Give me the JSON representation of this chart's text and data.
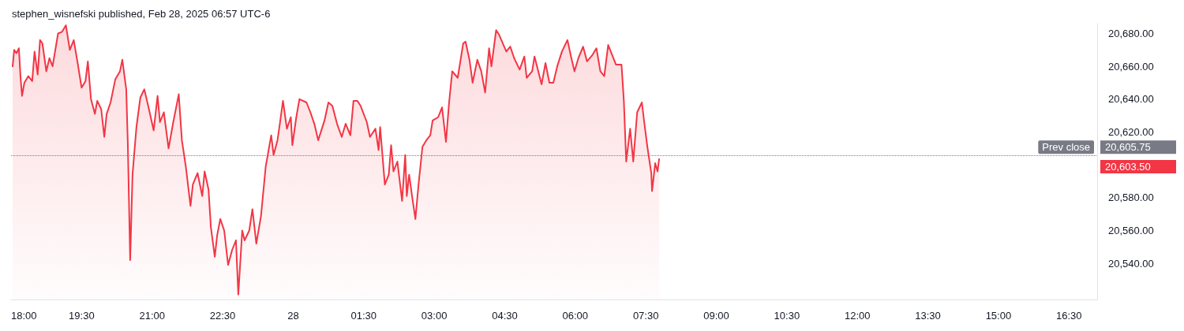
{
  "chart_data": {
    "type": "area",
    "title": "stephen_wisnefski published, Feb 28, 2025 06:57 UTC-6",
    "x": [
      "2025-02-27T18:02",
      "2025-02-27T18:04",
      "2025-02-27T18:07",
      "2025-02-27T18:10",
      "2025-02-27T18:12",
      "2025-02-27T18:14",
      "2025-02-27T18:17",
      "2025-02-27T18:22",
      "2025-02-27T18:27",
      "2025-02-27T18:30",
      "2025-02-27T18:34",
      "2025-02-27T18:37",
      "2025-02-27T18:40",
      "2025-02-27T18:45",
      "2025-02-27T18:49",
      "2025-02-27T18:53",
      "2025-02-27T19:00",
      "2025-02-27T19:05",
      "2025-02-27T19:10",
      "2025-02-27T19:15",
      "2025-02-27T19:20",
      "2025-02-27T19:25",
      "2025-02-27T19:30",
      "2025-02-27T19:35",
      "2025-02-27T19:38",
      "2025-02-27T19:42",
      "2025-02-27T19:47",
      "2025-02-27T19:50",
      "2025-02-27T19:55",
      "2025-02-27T19:59",
      "2025-02-27T20:02",
      "2025-02-27T20:07",
      "2025-02-27T20:13",
      "2025-02-27T20:19",
      "2025-02-27T20:22",
      "2025-02-27T20:27",
      "2025-02-27T20:29",
      "2025-02-27T20:32",
      "2025-02-27T20:35",
      "2025-02-27T20:40",
      "2025-02-27T20:45",
      "2025-02-27T20:50",
      "2025-02-27T20:55",
      "2025-02-27T21:02",
      "2025-02-27T21:07",
      "2025-02-27T21:10",
      "2025-02-27T21:15",
      "2025-02-27T21:21",
      "2025-02-27T21:27",
      "2025-02-27T21:34",
      "2025-02-27T21:38",
      "2025-02-27T21:43",
      "2025-02-27T21:49",
      "2025-02-27T21:52",
      "2025-02-27T21:58",
      "2025-02-27T22:04",
      "2025-02-27T22:07",
      "2025-02-27T22:12",
      "2025-02-27T22:15",
      "2025-02-27T22:20",
      "2025-02-27T22:23",
      "2025-02-27T22:27",
      "2025-02-27T22:32",
      "2025-02-27T22:37",
      "2025-02-27T22:42",
      "2025-02-27T22:47",
      "2025-02-27T22:50",
      "2025-02-27T22:55",
      "2025-02-27T22:58",
      "2025-02-27T23:04",
      "2025-02-27T23:08",
      "2025-02-27T23:13",
      "2025-02-27T23:19",
      "2025-02-27T23:25",
      "2025-02-27T23:32",
      "2025-02-27T23:35",
      "2025-02-27T23:40",
      "2025-02-27T23:43",
      "2025-02-27T23:47",
      "2025-02-27T23:52",
      "2025-02-27T23:57",
      "2025-02-27T23:59",
      "2025-02-28T00:04",
      "2025-02-28T00:08",
      "2025-02-28T00:17",
      "2025-02-28T00:22",
      "2025-02-28T00:27",
      "2025-02-28T00:32",
      "2025-02-28T00:40",
      "2025-02-28T00:45",
      "2025-02-28T00:50",
      "2025-02-28T00:56",
      "2025-02-28T01:02",
      "2025-02-28T01:07",
      "2025-02-28T01:13",
      "2025-02-28T01:17",
      "2025-02-28T01:22",
      "2025-02-28T01:26",
      "2025-02-28T01:34",
      "2025-02-28T01:38",
      "2025-02-28T01:45",
      "2025-02-28T01:49",
      "2025-02-28T01:51",
      "2025-02-28T01:57",
      "2025-02-28T02:02",
      "2025-02-28T02:05",
      "2025-02-28T02:08",
      "2025-02-28T02:13",
      "2025-02-28T02:19",
      "2025-02-28T02:23",
      "2025-02-28T02:25",
      "2025-02-28T02:28",
      "2025-02-28T02:32",
      "2025-02-28T02:36",
      "2025-02-28T02:40",
      "2025-02-28T02:45",
      "2025-02-28T02:50",
      "2025-02-28T02:55",
      "2025-02-28T02:58",
      "2025-02-28T03:05",
      "2025-02-28T03:10",
      "2025-02-28T03:15",
      "2025-02-28T03:19",
      "2025-02-28T03:23",
      "2025-02-28T03:30",
      "2025-02-28T03:37",
      "2025-02-28T03:40",
      "2025-02-28T03:45",
      "2025-02-28T03:49",
      "2025-02-28T03:55",
      "2025-02-28T04:00",
      "2025-02-28T04:05",
      "2025-02-28T04:10",
      "2025-02-28T04:13",
      "2025-02-28T04:19",
      "2025-02-28T04:23",
      "2025-02-28T04:32",
      "2025-02-28T04:37",
      "2025-02-28T04:42",
      "2025-02-28T04:49",
      "2025-02-28T04:55",
      "2025-02-28T04:58",
      "2025-02-28T05:05",
      "2025-02-28T05:08",
      "2025-02-28T05:17",
      "2025-02-28T05:22",
      "2025-02-28T05:27",
      "2025-02-28T05:32",
      "2025-02-28T05:37",
      "2025-02-28T05:43",
      "2025-02-28T05:50",
      "2025-02-28T05:55",
      "2025-02-28T05:59",
      "2025-02-28T06:04",
      "2025-02-28T06:10",
      "2025-02-28T06:15",
      "2025-02-28T06:22",
      "2025-02-28T06:27",
      "2025-02-28T06:32",
      "2025-02-28T06:37",
      "2025-02-28T06:42",
      "2025-02-28T06:47",
      "2025-02-28T06:52",
      "2025-02-28T06:59",
      "2025-02-28T07:02",
      "2025-02-28T07:05",
      "2025-02-28T07:10",
      "2025-02-28T07:14",
      "2025-02-28T07:19",
      "2025-02-28T07:25",
      "2025-02-28T07:28",
      "2025-02-28T07:32",
      "2025-02-28T07:37",
      "2025-02-28T07:38",
      "2025-02-28T07:42",
      "2025-02-28T07:45",
      "2025-02-28T07:47"
    ],
    "series": [
      {
        "color": "#f23645",
        "values": [
          20660,
          20670,
          20668,
          20671,
          20654,
          20642,
          20650,
          20654,
          20651,
          20669,
          20655,
          20676,
          20674,
          20657,
          20665,
          20660,
          20680,
          20681,
          20685,
          20670,
          20676,
          20662,
          20647,
          20651,
          20663,
          20640,
          20631,
          20639,
          20634,
          20617,
          20631,
          20638,
          20652,
          20657,
          20664,
          20646,
          20613,
          20542,
          20594,
          20623,
          20641,
          20646,
          20636,
          20621,
          20642,
          20626,
          20632,
          20610,
          20626,
          20643,
          20615,
          20599,
          20575,
          20588,
          20595,
          20581,
          20596,
          20585,
          20562,
          20544,
          20557,
          20567,
          20560,
          20539,
          20548,
          20554,
          20521,
          20560,
          20554,
          20560,
          20573,
          20552,
          20569,
          20599,
          20618,
          20606,
          20615,
          20625,
          20639,
          20622,
          20629,
          20612,
          20629,
          20640,
          20638,
          20632,
          20625,
          20615,
          20627,
          20638,
          20636,
          20625,
          20617,
          20625,
          20618,
          20639,
          20639,
          20636,
          20626,
          20617,
          20622,
          20609,
          20623,
          20588,
          20594,
          20612,
          20596,
          20602,
          20578,
          20606,
          20581,
          20594,
          20580,
          20567,
          20588,
          20611,
          20615,
          20618,
          20627,
          20629,
          20635,
          20614,
          20638,
          20657,
          20653,
          20674,
          20675,
          20664,
          20650,
          20664,
          20657,
          20644,
          20671,
          20660,
          20682,
          20679,
          20669,
          20672,
          20665,
          20658,
          20666,
          20653,
          20657,
          20666,
          20649,
          20662,
          20650,
          20650,
          20660,
          20669,
          20676,
          20665,
          20657,
          20665,
          20672,
          20663,
          20667,
          20671,
          20657,
          20654,
          20673,
          20667,
          20661,
          20661,
          20639,
          20602,
          20622,
          20602,
          20632,
          20638,
          20626,
          20611,
          20595,
          20584,
          20601,
          20596,
          20603.5
        ]
      }
    ],
    "xlim": [
      "2025-02-27T18:00",
      "2025-02-28T17:06"
    ],
    "xticks": [
      {
        "value": "2025-02-27T18:00",
        "label": "18:00"
      },
      {
        "value": "2025-02-27T19:30",
        "label": "19:30"
      },
      {
        "value": "2025-02-27T21:00",
        "label": "21:00"
      },
      {
        "value": "2025-02-27T22:30",
        "label": "22:30"
      },
      {
        "value": "2025-02-28T00:00",
        "label": "28"
      },
      {
        "value": "2025-02-28T01:30",
        "label": "01:30"
      },
      {
        "value": "2025-02-28T03:00",
        "label": "03:00"
      },
      {
        "value": "2025-02-28T04:30",
        "label": "04:30"
      },
      {
        "value": "2025-02-28T06:00",
        "label": "06:00"
      },
      {
        "value": "2025-02-28T07:30",
        "label": "07:30"
      },
      {
        "value": "2025-02-28T09:00",
        "label": "09:00"
      },
      {
        "value": "2025-02-28T10:30",
        "label": "10:30"
      },
      {
        "value": "2025-02-28T12:00",
        "label": "12:00"
      },
      {
        "value": "2025-02-28T13:30",
        "label": "13:30"
      },
      {
        "value": "2025-02-28T15:00",
        "label": "15:00"
      },
      {
        "value": "2025-02-28T16:30",
        "label": "16:30"
      }
    ],
    "ylim": [
      20518,
      20686
    ],
    "yticks": [
      {
        "value": 20540,
        "label": "20,540.00"
      },
      {
        "value": 20560,
        "label": "20,560.00"
      },
      {
        "value": 20580,
        "label": "20,580.00"
      },
      {
        "value": 20620,
        "label": "20,620.00"
      },
      {
        "value": 20640,
        "label": "20,640.00"
      },
      {
        "value": 20660,
        "label": "20,660.00"
      },
      {
        "value": 20680,
        "label": "20,680.00"
      }
    ],
    "ref_lines": [
      {
        "axis": "y",
        "value": 20605.75,
        "label": "Prev close",
        "color": "#787b86",
        "line_style": "dotted"
      }
    ],
    "annotations": [
      "20,605.75",
      "20,603.50"
    ],
    "grid": false,
    "marker": "none",
    "line_style": "solid"
  }
}
